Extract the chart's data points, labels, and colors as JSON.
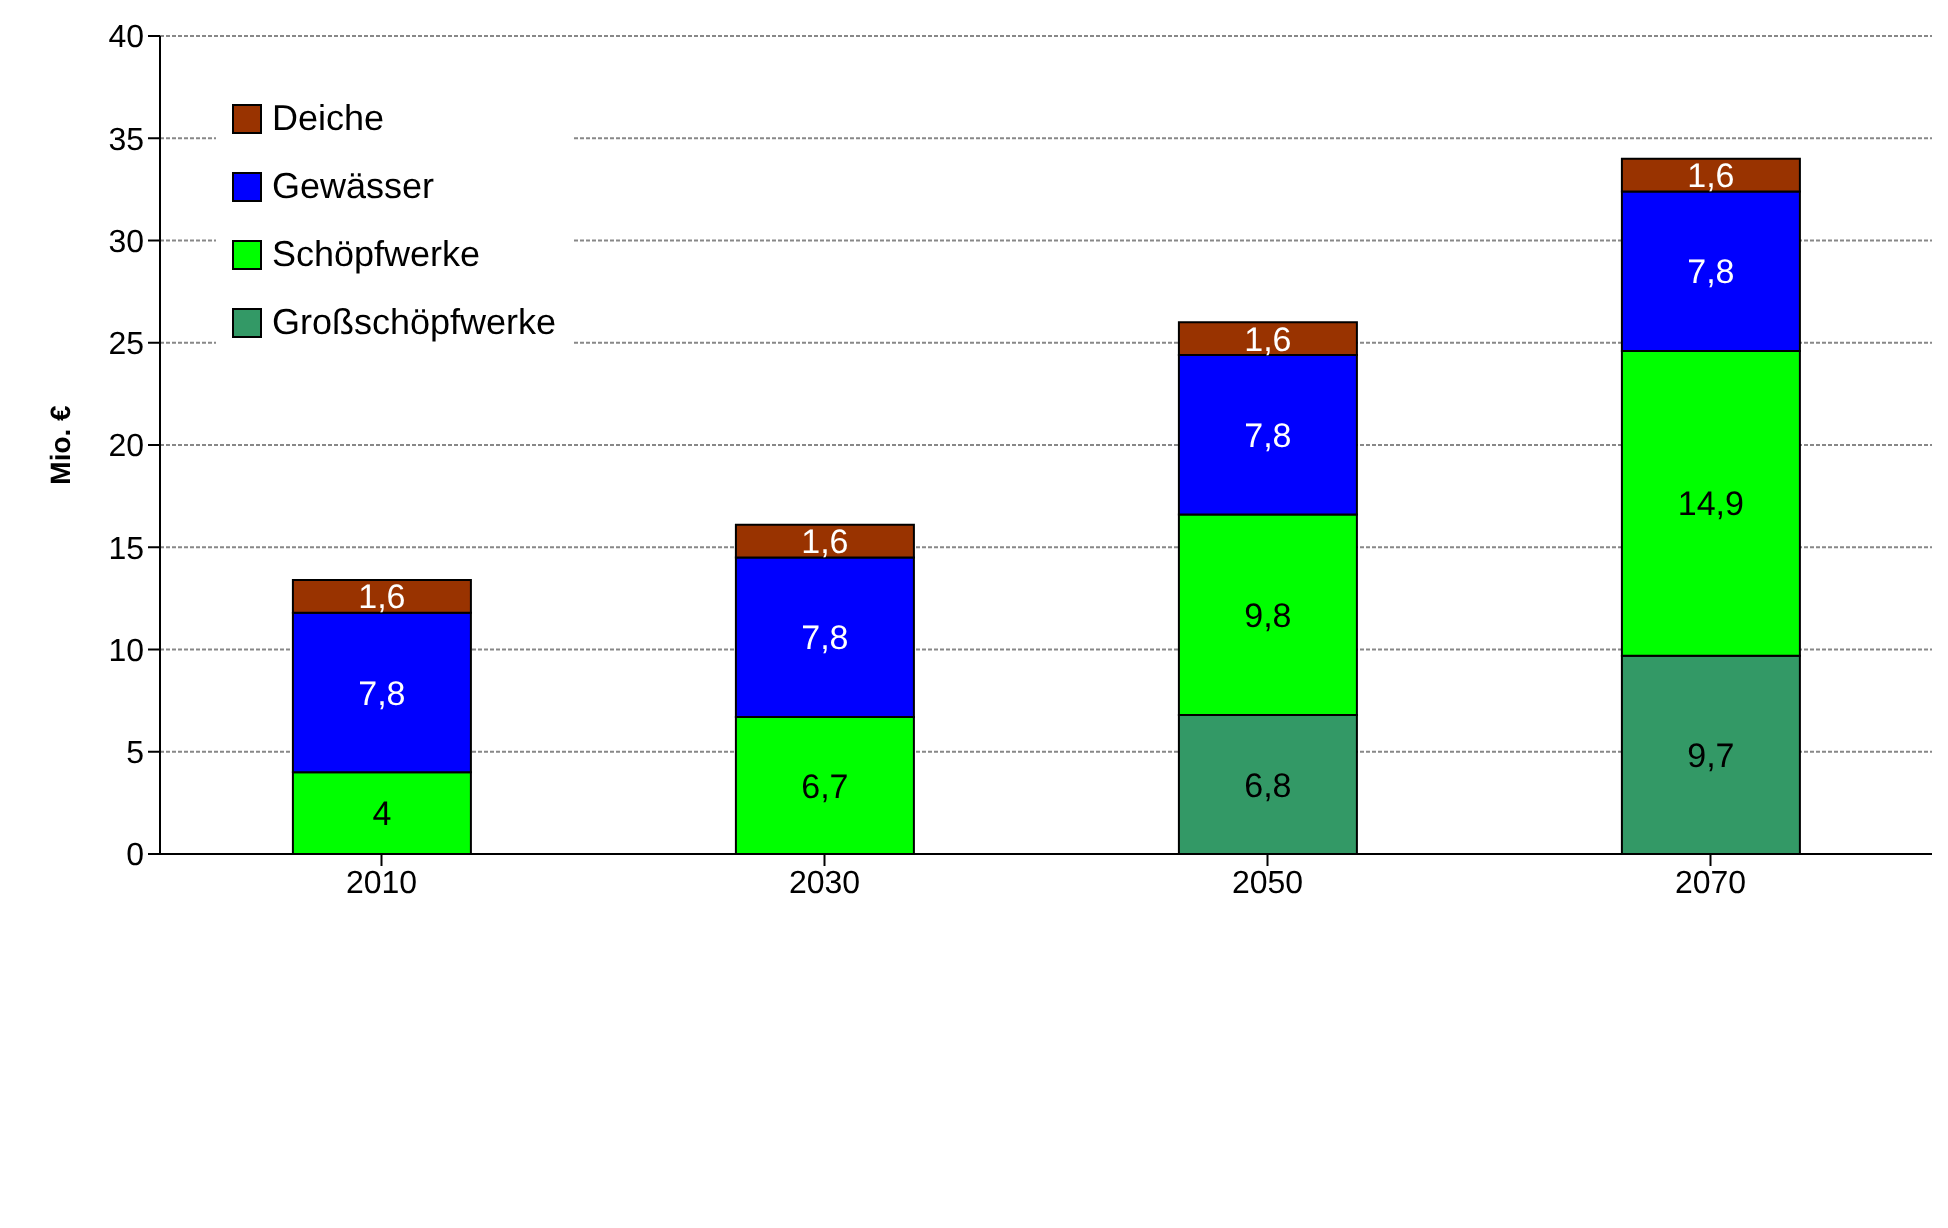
{
  "chart_data": {
    "type": "bar",
    "categories": [
      "2010",
      "2030",
      "2050",
      "2070"
    ],
    "stacked": true,
    "ylabel": "Mio. €",
    "ylim": [
      0,
      40
    ],
    "yticks": [
      0,
      5,
      10,
      15,
      20,
      25,
      30,
      35,
      40
    ],
    "grid": "y",
    "legend": "top left",
    "series": [
      {
        "name": "Großschöpfwerke",
        "color": "#339966",
        "values": [
          null,
          null,
          6.8,
          9.7
        ],
        "value_labels": [
          null,
          null,
          "6,8",
          "9,7"
        ]
      },
      {
        "name": "Schöpfwerke",
        "color": "#00ff00",
        "values": [
          4,
          6.7,
          9.8,
          14.9
        ],
        "value_labels": [
          "4",
          "6,7",
          "9,8",
          "14,9"
        ]
      },
      {
        "name": "Gewässer",
        "color": "#0000ff",
        "values": [
          7.8,
          7.8,
          7.8,
          7.8
        ],
        "value_labels": [
          "7,8",
          "7,8",
          "7,8",
          "7,8"
        ]
      },
      {
        "name": "Deiche",
        "color": "#993300",
        "values": [
          1.6,
          1.6,
          1.6,
          1.6
        ],
        "value_labels": [
          "1,6",
          "1,6",
          "1,6",
          "1,6"
        ]
      }
    ]
  }
}
